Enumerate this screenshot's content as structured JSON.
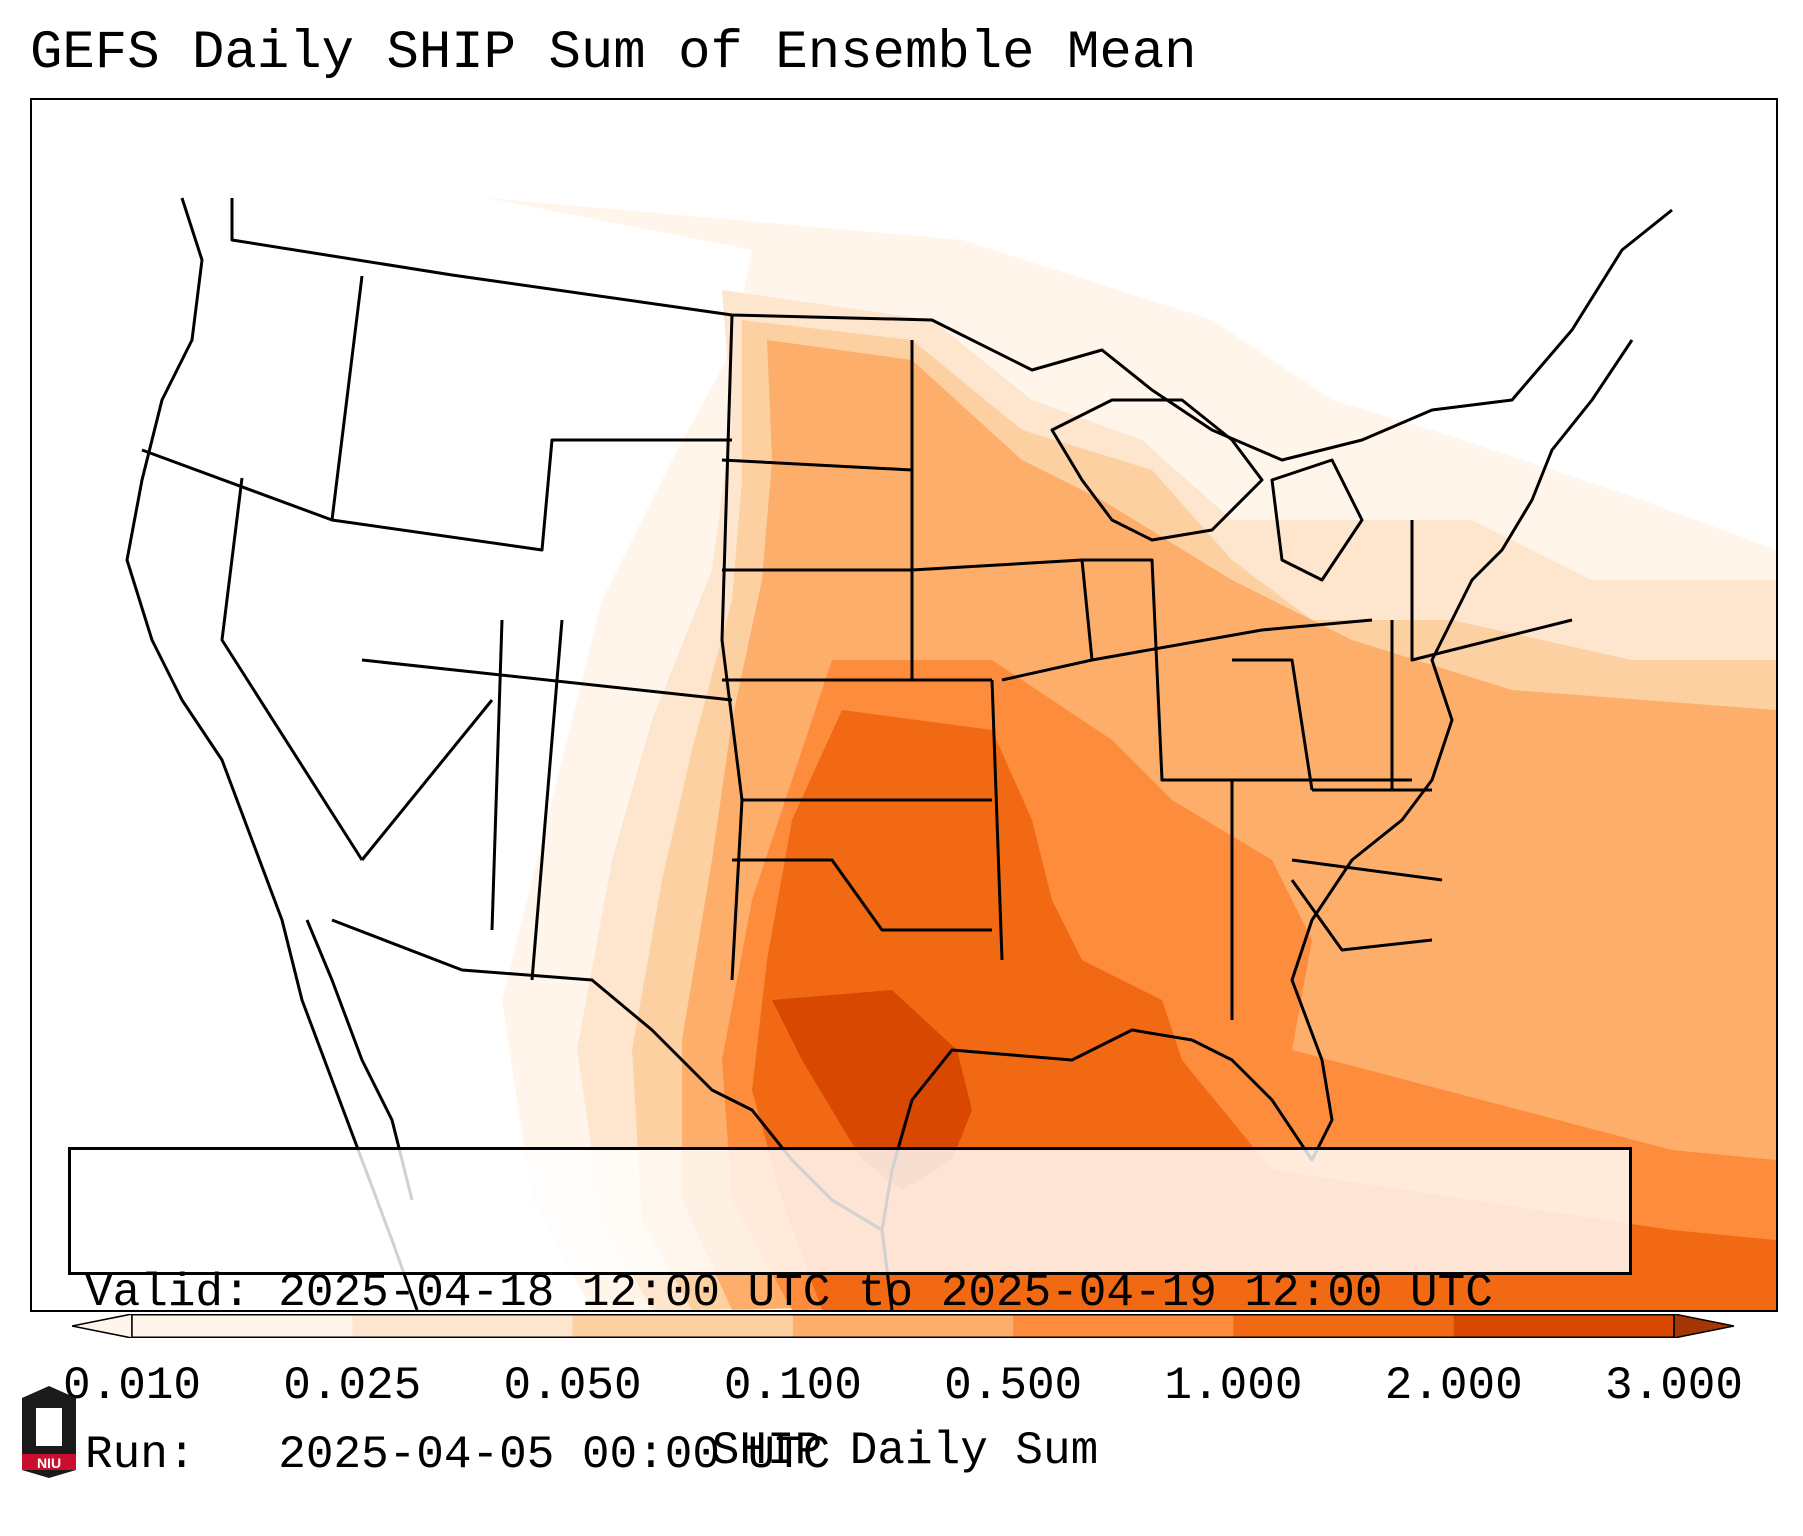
{
  "title": "GEFS Daily SHIP Sum of Ensemble Mean",
  "info_box": {
    "valid_label": "Valid:",
    "valid_value": "2025-04-18 12:00 UTC to 2025-04-19 12:00 UTC",
    "run_label": "Run:",
    "run_value": "2025-04-05 00:00 UTC"
  },
  "colorbar": {
    "label": "SHIP Daily Sum",
    "ticks": [
      "0.010",
      "0.025",
      "0.050",
      "0.100",
      "0.500",
      "1.000",
      "2.000",
      "3.000"
    ],
    "colors": [
      "#fff5eb",
      "#fee6ce",
      "#fdd0a2",
      "#fdae6b",
      "#fd8d3c",
      "#f16913",
      "#d94801",
      "#a63603"
    ],
    "extend": "both"
  },
  "logo": {
    "text": "NIU",
    "colors": {
      "dark": "#1a1a1a",
      "red": "#c8102e"
    }
  },
  "map": {
    "region": "Continental United States",
    "field_colors": {
      "lightest": "#fff5eb",
      "lighter": "#fee6ce",
      "light": "#fdd0a2",
      "medium": "#fdae6b",
      "orange": "#fd8d3c",
      "dark_orange": "#f16913",
      "darkest": "#d94801"
    }
  }
}
